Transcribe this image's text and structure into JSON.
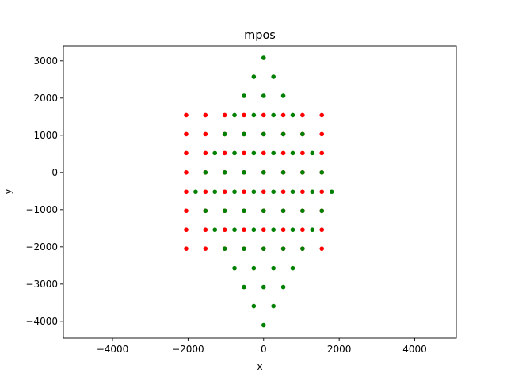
{
  "chart_data": {
    "type": "scatter",
    "title": "mpos",
    "xlabel": "x",
    "ylabel": "y",
    "xlim": [
      -5300,
      5100
    ],
    "ylim": [
      -4450,
      3400
    ],
    "xticks": [
      -4000,
      -2000,
      0,
      2000,
      4000
    ],
    "yticks": [
      -4000,
      -3000,
      -2000,
      -1000,
      0,
      1000,
      2000,
      3000
    ],
    "xtick_labels": [
      "−4000",
      "−2000",
      "0",
      "2000",
      "4000"
    ],
    "ytick_labels": [
      "−4000",
      "−3000",
      "−2000",
      "−1000",
      "0",
      "1000",
      "2000",
      "3000"
    ],
    "grid": false,
    "colors": {
      "red": "#ff0000",
      "green": "#008000"
    },
    "series": [
      {
        "color": "red",
        "points": [
          [
            -2050,
            1540
          ],
          [
            -1540,
            1540
          ],
          [
            -1030,
            1540
          ],
          [
            -520,
            1540
          ],
          [
            0,
            1540
          ],
          [
            520,
            1540
          ],
          [
            1030,
            1540
          ],
          [
            1540,
            1540
          ],
          [
            -2050,
            1030
          ],
          [
            -1540,
            1030
          ],
          [
            -1030,
            1030
          ],
          [
            -520,
            1030
          ],
          [
            0,
            1030
          ],
          [
            520,
            1030
          ],
          [
            1030,
            1030
          ],
          [
            1540,
            1030
          ],
          [
            -2050,
            520
          ],
          [
            -1540,
            520
          ],
          [
            -1030,
            520
          ],
          [
            -520,
            520
          ],
          [
            0,
            520
          ],
          [
            520,
            520
          ],
          [
            1030,
            520
          ],
          [
            1540,
            520
          ],
          [
            -2050,
            0
          ],
          [
            -1540,
            0
          ],
          [
            -1030,
            0
          ],
          [
            -520,
            0
          ],
          [
            0,
            0
          ],
          [
            520,
            0
          ],
          [
            1030,
            0
          ],
          [
            1540,
            0
          ],
          [
            -2050,
            -520
          ],
          [
            -1540,
            -520
          ],
          [
            -1030,
            -520
          ],
          [
            -520,
            -520
          ],
          [
            0,
            -520
          ],
          [
            520,
            -520
          ],
          [
            1030,
            -520
          ],
          [
            1540,
            -520
          ],
          [
            -2050,
            -1030
          ],
          [
            -1540,
            -1030
          ],
          [
            -1030,
            -1030
          ],
          [
            -520,
            -1030
          ],
          [
            0,
            -1030
          ],
          [
            520,
            -1030
          ],
          [
            1030,
            -1030
          ],
          [
            1540,
            -1030
          ],
          [
            -2050,
            -1540
          ],
          [
            -1540,
            -1540
          ],
          [
            -1030,
            -1540
          ],
          [
            -520,
            -1540
          ],
          [
            0,
            -1540
          ],
          [
            520,
            -1540
          ],
          [
            1030,
            -1540
          ],
          [
            1540,
            -1540
          ],
          [
            -2050,
            -2050
          ],
          [
            -1540,
            -2050
          ],
          [
            -1030,
            -2050
          ],
          [
            -520,
            -2050
          ],
          [
            0,
            -2050
          ],
          [
            520,
            -2050
          ],
          [
            1030,
            -2050
          ],
          [
            1540,
            -2050
          ]
        ]
      },
      {
        "color": "green",
        "points": [
          [
            0,
            3080
          ],
          [
            -260,
            2570
          ],
          [
            260,
            2570
          ],
          [
            -520,
            2060
          ],
          [
            0,
            2060
          ],
          [
            520,
            2060
          ],
          [
            -770,
            1540
          ],
          [
            -260,
            1540
          ],
          [
            260,
            1540
          ],
          [
            770,
            1540
          ],
          [
            -1030,
            1030
          ],
          [
            -520,
            1030
          ],
          [
            0,
            1030
          ],
          [
            520,
            1030
          ],
          [
            1030,
            1030
          ],
          [
            -1290,
            520
          ],
          [
            -770,
            520
          ],
          [
            -260,
            520
          ],
          [
            260,
            520
          ],
          [
            770,
            520
          ],
          [
            1290,
            520
          ],
          [
            -1540,
            0
          ],
          [
            -1030,
            0
          ],
          [
            -520,
            0
          ],
          [
            0,
            0
          ],
          [
            520,
            0
          ],
          [
            1030,
            0
          ],
          [
            1540,
            0
          ],
          [
            -1800,
            -520
          ],
          [
            -1290,
            -520
          ],
          [
            -770,
            -520
          ],
          [
            -260,
            -520
          ],
          [
            260,
            -520
          ],
          [
            770,
            -520
          ],
          [
            1290,
            -520
          ],
          [
            1800,
            -520
          ],
          [
            -1540,
            -1030
          ],
          [
            -1030,
            -1030
          ],
          [
            -520,
            -1030
          ],
          [
            0,
            -1030
          ],
          [
            520,
            -1030
          ],
          [
            1030,
            -1030
          ],
          [
            1540,
            -1030
          ],
          [
            -1290,
            -1540
          ],
          [
            -770,
            -1540
          ],
          [
            -260,
            -1540
          ],
          [
            260,
            -1540
          ],
          [
            770,
            -1540
          ],
          [
            1290,
            -1540
          ],
          [
            -1030,
            -2050
          ],
          [
            -520,
            -2050
          ],
          [
            0,
            -2050
          ],
          [
            520,
            -2050
          ],
          [
            1030,
            -2050
          ],
          [
            -770,
            -2570
          ],
          [
            -260,
            -2570
          ],
          [
            260,
            -2570
          ],
          [
            770,
            -2570
          ],
          [
            -520,
            -3080
          ],
          [
            0,
            -3080
          ],
          [
            520,
            -3080
          ],
          [
            -260,
            -3590
          ],
          [
            260,
            -3590
          ],
          [
            0,
            -4100
          ]
        ]
      }
    ]
  }
}
